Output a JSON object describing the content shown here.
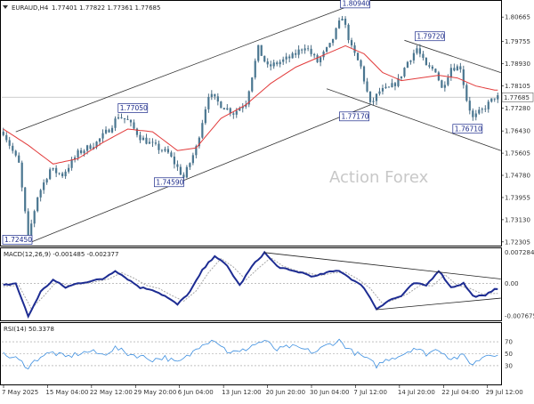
{
  "window": {
    "symbol_caption": "EURAUD,H4",
    "ohlc": "1.77401 1.77822 1.77361 1.77685",
    "watermark": "Action Forex"
  },
  "chart_data": [
    {
      "type": "candlestick",
      "title": "EURAUD,H4",
      "ylim": [
        1.722,
        1.812
      ],
      "yticks": [
        "1.80665",
        "1.79755",
        "1.78930",
        "1.78105",
        "1.77280",
        "1.76430",
        "1.75605",
        "1.74780",
        "1.73955",
        "1.73130",
        "1.72305"
      ],
      "current_price": "1.77685",
      "xticks": [
        "7 May 2025",
        "15 May 04:00",
        "22 May 12:00",
        "29 May 20:00",
        "6 Jun 04:00",
        "13 Jun 12:00",
        "20 Jun 20:00",
        "30 Jun 04:00",
        "7 Jul 12:00",
        "14 Jul 20:00",
        "22 Jul 04:00",
        "29 Jul 12:00"
      ],
      "annotations": [
        {
          "text": "1.72450",
          "x": 0.6,
          "y": 1.7245
        },
        {
          "text": "1.77050",
          "x": 37.5,
          "y": 1.7705
        },
        {
          "text": "1.74590",
          "x": 58.0,
          "y": 1.7459
        },
        {
          "text": "1.80940",
          "x": 109.0,
          "y": 1.8094
        },
        {
          "text": "1.77170",
          "x": 117.0,
          "y": 1.7717
        },
        {
          "text": "1.79720",
          "x": 133.0,
          "y": 1.7972
        },
        {
          "text": "1.76710",
          "x": 150.0,
          "y": 1.7671
        }
      ],
      "anchors": [
        [
          0,
          1.764
        ],
        [
          5,
          1.752
        ],
        [
          8,
          1.7245
        ],
        [
          11,
          1.74
        ],
        [
          15,
          1.75
        ],
        [
          19,
          1.748
        ],
        [
          24,
          1.756
        ],
        [
          30,
          1.76
        ],
        [
          34,
          1.765
        ],
        [
          37,
          1.77
        ],
        [
          40,
          1.768
        ],
        [
          44,
          1.762
        ],
        [
          48,
          1.759
        ],
        [
          53,
          1.756
        ],
        [
          58,
          1.747
        ],
        [
          62,
          1.758
        ],
        [
          66,
          1.778
        ],
        [
          70,
          1.774
        ],
        [
          74,
          1.771
        ],
        [
          78,
          1.775
        ],
        [
          82,
          1.795
        ],
        [
          85,
          1.788
        ],
        [
          89,
          1.79
        ],
        [
          93,
          1.792
        ],
        [
          97,
          1.796
        ],
        [
          101,
          1.79
        ],
        [
          105,
          1.796
        ],
        [
          109,
          1.807
        ],
        [
          112,
          1.795
        ],
        [
          115,
          1.788
        ],
        [
          118,
          1.774
        ],
        [
          121,
          1.779
        ],
        [
          124,
          1.78
        ],
        [
          127,
          1.783
        ],
        [
          130,
          1.79
        ],
        [
          133,
          1.795
        ],
        [
          136,
          1.788
        ],
        [
          139,
          1.787
        ],
        [
          141,
          1.78
        ],
        [
          144,
          1.788
        ],
        [
          147,
          1.788
        ],
        [
          149,
          1.776
        ],
        [
          151,
          1.769
        ],
        [
          154,
          1.772
        ],
        [
          158,
          1.7768
        ]
      ],
      "ma_anchors": [
        [
          0,
          1.765
        ],
        [
          8,
          1.759
        ],
        [
          16,
          1.752
        ],
        [
          24,
          1.754
        ],
        [
          32,
          1.76
        ],
        [
          40,
          1.765
        ],
        [
          48,
          1.764
        ],
        [
          56,
          1.757
        ],
        [
          62,
          1.758
        ],
        [
          70,
          1.769
        ],
        [
          78,
          1.774
        ],
        [
          86,
          1.782
        ],
        [
          94,
          1.788
        ],
        [
          102,
          1.792
        ],
        [
          110,
          1.796
        ],
        [
          116,
          1.793
        ],
        [
          122,
          1.786
        ],
        [
          128,
          1.783
        ],
        [
          134,
          1.784
        ],
        [
          140,
          1.785
        ],
        [
          146,
          1.784
        ],
        [
          152,
          1.781
        ],
        [
          158,
          1.7795
        ]
      ],
      "channels": [
        {
          "x1": 4,
          "y1": 1.764,
          "x2": 114,
          "y2": 1.812
        },
        {
          "x1": 9,
          "y1": 1.723,
          "x2": 118,
          "y2": 1.774
        },
        {
          "x1": 129,
          "y1": 1.798,
          "x2": 160,
          "y2": 1.786
        },
        {
          "x1": 104,
          "y1": 1.78,
          "x2": 160,
          "y2": 1.757
        }
      ]
    },
    {
      "type": "line",
      "title": "MACD(12,26,9) -0.001485 -0.002377",
      "ylim": [
        -0.0085,
        0.008
      ],
      "yticks": [
        "0.007284",
        "0.00",
        "-0.007675"
      ],
      "macd_anchors": [
        [
          0,
          -0.0005
        ],
        [
          4,
          0.0
        ],
        [
          8,
          -0.0078
        ],
        [
          12,
          -0.002
        ],
        [
          16,
          0.0008
        ],
        [
          20,
          -0.001
        ],
        [
          24,
          0.0
        ],
        [
          28,
          0.0005
        ],
        [
          32,
          0.001
        ],
        [
          36,
          0.003
        ],
        [
          40,
          0.001
        ],
        [
          44,
          -0.001
        ],
        [
          48,
          -0.0015
        ],
        [
          52,
          -0.003
        ],
        [
          56,
          -0.005
        ],
        [
          60,
          -0.002
        ],
        [
          64,
          0.003
        ],
        [
          68,
          0.0065
        ],
        [
          72,
          0.004
        ],
        [
          76,
          -0.0005
        ],
        [
          80,
          0.004
        ],
        [
          84,
          0.0072
        ],
        [
          88,
          0.004
        ],
        [
          92,
          0.003
        ],
        [
          96,
          0.0025
        ],
        [
          100,
          0.0015
        ],
        [
          104,
          0.0025
        ],
        [
          108,
          0.003
        ],
        [
          112,
          0.001
        ],
        [
          116,
          -0.001
        ],
        [
          120,
          -0.006
        ],
        [
          124,
          -0.004
        ],
        [
          128,
          -0.003
        ],
        [
          132,
          0.0
        ],
        [
          136,
          -0.0005
        ],
        [
          140,
          0.003
        ],
        [
          144,
          -0.001
        ],
        [
          148,
          0.0
        ],
        [
          151,
          -0.003
        ],
        [
          155,
          -0.003
        ],
        [
          158,
          -0.0012
        ]
      ],
      "signal_anchors": [
        [
          0,
          -0.0008
        ],
        [
          5,
          -0.0005
        ],
        [
          9,
          -0.006
        ],
        [
          13,
          -0.003
        ],
        [
          17,
          0.0003
        ],
        [
          21,
          -0.0005
        ],
        [
          25,
          -0.0002
        ],
        [
          30,
          0.0004
        ],
        [
          34,
          0.001
        ],
        [
          38,
          0.0025
        ],
        [
          42,
          0.0012
        ],
        [
          46,
          -0.0005
        ],
        [
          50,
          -0.0012
        ],
        [
          54,
          -0.0028
        ],
        [
          58,
          -0.0042
        ],
        [
          62,
          -0.0018
        ],
        [
          66,
          0.0025
        ],
        [
          70,
          0.0058
        ],
        [
          74,
          0.0038
        ],
        [
          78,
          0.0008
        ],
        [
          82,
          0.0035
        ],
        [
          86,
          0.006
        ],
        [
          90,
          0.004
        ],
        [
          94,
          0.003
        ],
        [
          98,
          0.0024
        ],
        [
          102,
          0.0018
        ],
        [
          106,
          0.0024
        ],
        [
          110,
          0.0026
        ],
        [
          114,
          0.001
        ],
        [
          118,
          -0.0012
        ],
        [
          122,
          -0.0048
        ],
        [
          126,
          -0.0038
        ],
        [
          130,
          -0.0025
        ],
        [
          134,
          -0.0005
        ],
        [
          138,
          -0.0006
        ],
        [
          142,
          0.002
        ],
        [
          146,
          -0.0005
        ],
        [
          150,
          -0.0012
        ],
        [
          154,
          -0.0025
        ],
        [
          158,
          -0.0024
        ]
      ],
      "lines": [
        {
          "x1": 84,
          "y1": 0.0072,
          "x2": 160,
          "y2": 0.001
        },
        {
          "x1": 120,
          "y1": -0.0062,
          "x2": 160,
          "y2": -0.0035
        }
      ]
    },
    {
      "type": "line",
      "title": "RSI(14) 50.3378",
      "ylim": [
        0,
        100
      ],
      "yticks": [
        "70",
        "50",
        "30"
      ],
      "levels": [
        70,
        50,
        30
      ],
      "rsi_anchors": [
        [
          0,
          48
        ],
        [
          4,
          42
        ],
        [
          8,
          28
        ],
        [
          12,
          46
        ],
        [
          16,
          52
        ],
        [
          20,
          44
        ],
        [
          24,
          50
        ],
        [
          28,
          54
        ],
        [
          32,
          48
        ],
        [
          36,
          60
        ],
        [
          40,
          50
        ],
        [
          44,
          46
        ],
        [
          48,
          40
        ],
        [
          52,
          44
        ],
        [
          56,
          34
        ],
        [
          60,
          48
        ],
        [
          64,
          68
        ],
        [
          68,
          74
        ],
        [
          72,
          54
        ],
        [
          76,
          52
        ],
        [
          80,
          64
        ],
        [
          84,
          72
        ],
        [
          88,
          56
        ],
        [
          92,
          62
        ],
        [
          96,
          58
        ],
        [
          100,
          52
        ],
        [
          104,
          64
        ],
        [
          108,
          72
        ],
        [
          112,
          54
        ],
        [
          116,
          44
        ],
        [
          120,
          30
        ],
        [
          124,
          42
        ],
        [
          128,
          48
        ],
        [
          132,
          60
        ],
        [
          136,
          50
        ],
        [
          140,
          58
        ],
        [
          144,
          42
        ],
        [
          148,
          46
        ],
        [
          151,
          32
        ],
        [
          155,
          48
        ],
        [
          158,
          50
        ]
      ]
    }
  ]
}
